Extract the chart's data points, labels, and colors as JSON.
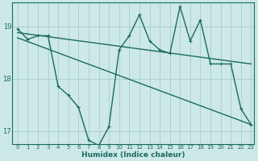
{
  "xlabel": "Humidex (Indice chaleur)",
  "background_color": "#cce8e8",
  "grid_color": "#aacccc",
  "line_color": "#1a6b5e",
  "xlim": [
    -0.5,
    23.3
  ],
  "ylim": [
    16.75,
    19.45
  ],
  "yticks": [
    17,
    18,
    19
  ],
  "xticks": [
    0,
    1,
    2,
    3,
    4,
    5,
    6,
    7,
    8,
    9,
    10,
    11,
    12,
    13,
    14,
    15,
    16,
    17,
    18,
    19,
    20,
    21,
    22,
    23
  ],
  "line1_x": [
    0,
    1,
    2,
    3,
    4,
    5,
    6,
    7,
    8,
    9,
    10,
    11,
    12,
    13,
    14,
    15,
    16,
    17,
    18,
    19,
    20,
    21,
    22,
    23
  ],
  "line1_y": [
    18.95,
    18.75,
    18.82,
    18.82,
    17.85,
    17.68,
    17.45,
    16.82,
    16.72,
    17.08,
    18.55,
    18.82,
    19.22,
    18.72,
    18.55,
    18.48,
    19.38,
    18.72,
    19.12,
    18.28,
    18.28,
    18.28,
    17.42,
    17.12
  ],
  "line2_x": [
    0,
    23
  ],
  "line2_y": [
    18.88,
    18.28
  ],
  "line3_x": [
    0,
    23
  ],
  "line3_y": [
    18.78,
    17.12
  ],
  "marker_size": 2.5,
  "line_width": 1.0
}
